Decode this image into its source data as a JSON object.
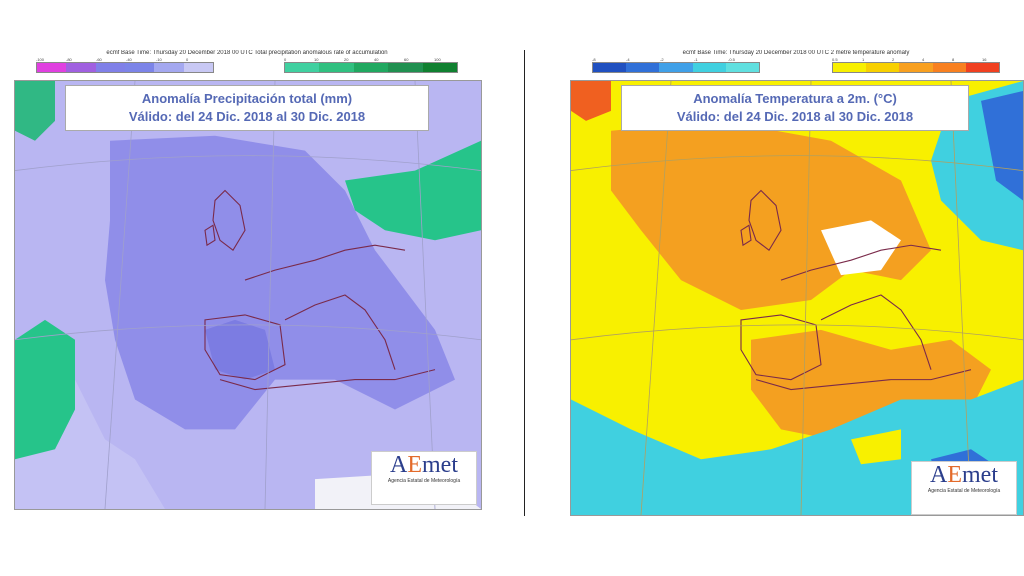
{
  "left": {
    "header": "ecmf Base Time: Thursday 20 December 2018 00 UTC Total precipitation anomalous rate of accumulation",
    "legend_neg": {
      "ticks": [
        "-100",
        "-80",
        "-60",
        "-40",
        "-10",
        "0"
      ],
      "colors": [
        "#e040e0",
        "#a060e0",
        "#8080e8",
        "#7c84e8",
        "#a4a8f0",
        "#c8c8f4"
      ]
    },
    "legend_pos": {
      "ticks": [
        "0",
        "10",
        "20",
        "40",
        "60",
        "100"
      ],
      "colors": [
        "#40d0a0",
        "#30c080",
        "#20a860",
        "#209050",
        "#108030"
      ]
    },
    "title_line1": "Anomalía Precipitación total (mm)",
    "title_line2": "Válido: del 24 Dic. 2018 al 30 Dic. 2018",
    "logo_text": "AEmet",
    "logo_sub": "Agencia Estatal de Meteorología",
    "colors": {
      "ocean_base": "#b9b6f2",
      "dry_core": "#8c8ae8",
      "wet": "#26c48a",
      "neutral": "#f2f2f8"
    }
  },
  "right": {
    "header": "ecmf Base Time: Thursday 20 December 2018 00 UTC 2 metre temperature anomaly",
    "legend_neg": {
      "ticks": [
        "-8",
        "-4",
        "-2",
        "-1",
        "-0.5"
      ],
      "colors": [
        "#2050c0",
        "#3070d8",
        "#40a0e8",
        "#40d0e0",
        "#60e0e0"
      ]
    },
    "legend_pos": {
      "ticks": [
        "0.5",
        "1",
        "2",
        "4",
        "8",
        "16"
      ],
      "colors": [
        "#f8f000",
        "#f8d000",
        "#f8a020",
        "#f88020",
        "#f04020"
      ]
    },
    "title_line1": "Anomalía Temperatura a 2m. (°C)",
    "title_line2": "Válido: del 24 Dic. 2018 al 30 Dic. 2018",
    "logo_text": "AEmet",
    "logo_sub": "Agencia Estatal de Meteorología",
    "colors": {
      "warm_low": "#f8f000",
      "warm_mid": "#f4a020",
      "warm_high": "#f06020",
      "cold": "#40d0e0",
      "cold_deep": "#3070d8"
    }
  }
}
